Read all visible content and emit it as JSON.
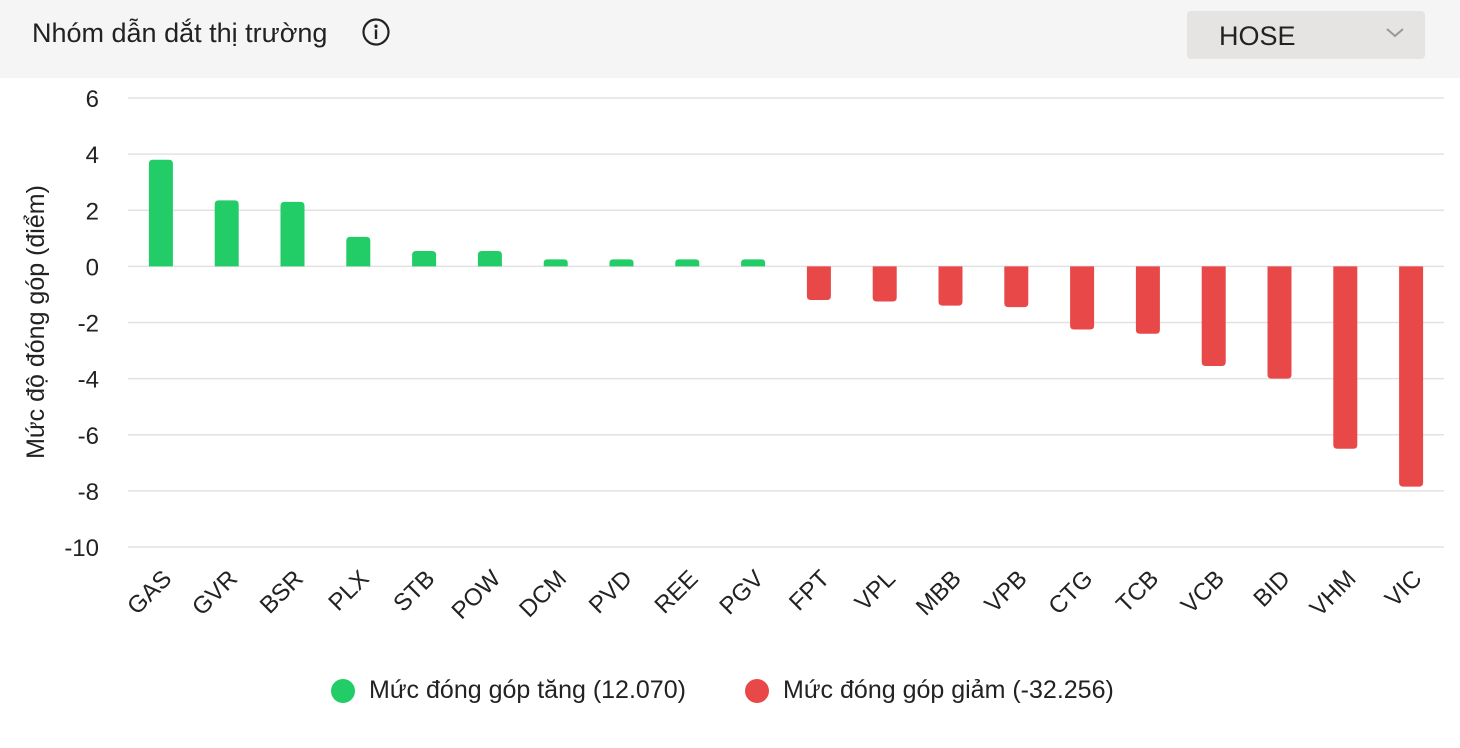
{
  "header": {
    "title": "Nhóm dẫn dắt thị trường",
    "info_icon": "info-icon",
    "exchange_select": {
      "value": "HOSE",
      "icon": "chevron-down-icon"
    }
  },
  "colors": {
    "positive": "#22cc66",
    "negative": "#e84848",
    "grid": "#e2e2e2",
    "header_bg": "#f5f5f5"
  },
  "chart_data": {
    "type": "bar",
    "ylabel": "Mức độ đóng góp (điểm)",
    "xlabel": "",
    "ylim": [
      -10,
      6
    ],
    "yticks": [
      6,
      4,
      2,
      0,
      -2,
      -4,
      -6,
      -8,
      -10
    ],
    "grid": true,
    "legend_position": "bottom",
    "categories": [
      "GAS",
      "GVR",
      "BSR",
      "PLX",
      "STB",
      "POW",
      "DCM",
      "PVD",
      "REE",
      "PGV",
      "FPT",
      "VPL",
      "MBB",
      "VPB",
      "CTG",
      "TCB",
      "VCB",
      "BID",
      "VHM",
      "VIC"
    ],
    "values": [
      3.8,
      2.35,
      2.3,
      1.05,
      0.55,
      0.55,
      0.25,
      0.25,
      0.25,
      0.25,
      -1.2,
      -1.25,
      -1.4,
      -1.45,
      -2.25,
      -2.4,
      -3.55,
      -4.0,
      -6.5,
      -7.85
    ],
    "legend": [
      {
        "label": "Mức đóng góp tăng (12.070)",
        "color": "#22cc66"
      },
      {
        "label": "Mức đóng góp giảm (-32.256)",
        "color": "#e84848"
      }
    ]
  }
}
